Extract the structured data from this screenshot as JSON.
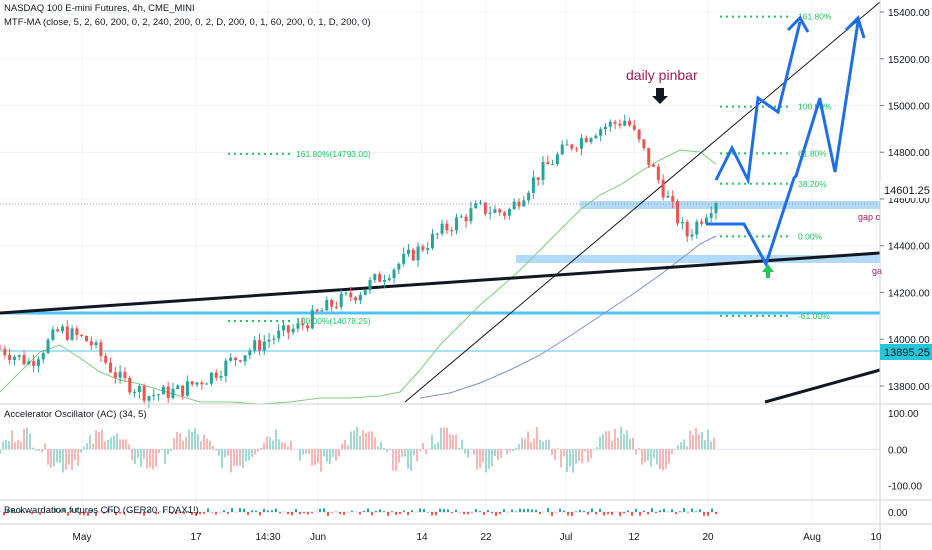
{
  "legend": {
    "title": "NASDAQ 100 E-mini Futures, 4h, CME_MINI",
    "indicator": "MTF-MA (close, 5, 2, 60, 200, 0, 2, 240, 200, 0, 2, D, 200, 0, 1, 60, 200, 0, 1, D, 200, 0)",
    "pane2": "Accelerator Oscillator (AC) (34, 5)",
    "pane3": "Backwardation futures CFD (GER30, FDAX1!)"
  },
  "colors": {
    "up": "#26a69a",
    "down": "#ef5350",
    "blue_arrow": "#1e6ee8",
    "fib": "#22c55e",
    "zone": "#90caf9",
    "sma_fast": "#7ccf7c",
    "sma_slow": "#8090c8",
    "annotation": "#9c1c5b",
    "price_tag": "#131722"
  },
  "chart_data": [
    {
      "type": "candlestick",
      "pane": "price",
      "y_axis_ticks": [
        13800,
        14000,
        14200,
        14400,
        14600,
        14800,
        15000,
        15200,
        15400
      ],
      "ylim": [
        13740,
        15430
      ],
      "price_tags": [
        "14601.25",
        "13895.25"
      ],
      "x_axis_labels": [
        "May",
        "17",
        "14:30",
        "Jun",
        "14",
        "22",
        "Jul",
        "12",
        "20",
        "Aug",
        "10"
      ],
      "annotation": "daily pinbar",
      "fib_labels": [
        "161.80%",
        "100.00%",
        "61.80%",
        "38.20%",
        "0.00%",
        "-61.00%"
      ],
      "fib_prices": [
        15380,
        14995,
        14795,
        14665,
        14440,
        14100
      ],
      "old_fib_labels": [
        "161.80%(14793.00)",
        "100.00%(14078.25)"
      ],
      "old_fib_prices": [
        14793,
        14078
      ],
      "zone_labels": [
        "gap o",
        "ga"
      ],
      "series_close_approx": [
        13960,
        13900,
        14040,
        13990,
        13830,
        13760,
        13780,
        13840,
        13930,
        14000,
        14050,
        14140,
        14200,
        14290,
        14380,
        14480,
        14560,
        14540,
        14700,
        14820,
        14900,
        14940,
        14700,
        14440,
        14600
      ]
    },
    {
      "type": "bar",
      "pane": "oscillator",
      "title": "Accelerator Oscillator (AC) (34, 5)",
      "y_axis_ticks": [
        100,
        0,
        -100
      ],
      "ylim": [
        -140,
        125
      ]
    },
    {
      "type": "bar",
      "pane": "backwardation",
      "title": "Backwardation futures CFD (GER30, FDAX1!)",
      "y_axis_ticks": [
        0
      ]
    }
  ]
}
